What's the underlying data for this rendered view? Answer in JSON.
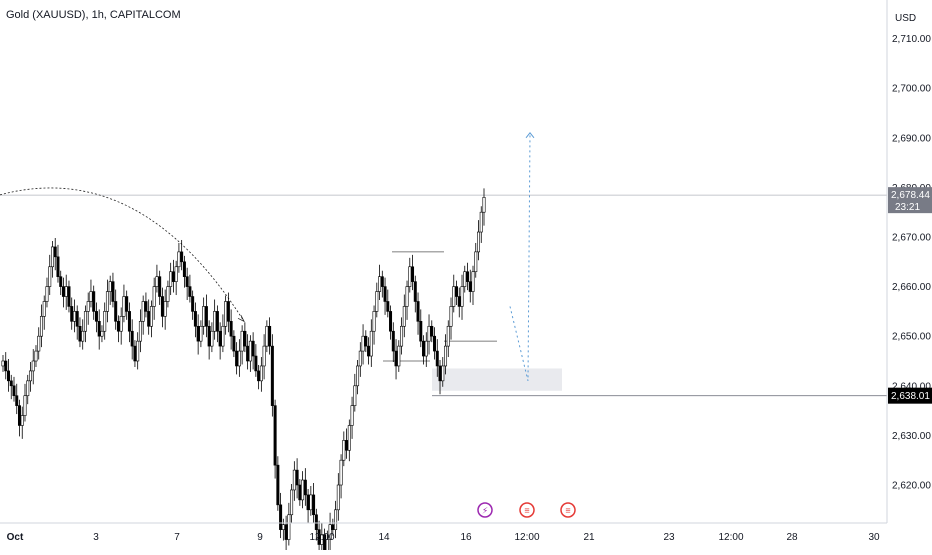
{
  "header": {
    "title": "Gold (XAUUSD), 1h, CAPITALCOM",
    "currency": "USD"
  },
  "colors": {
    "candle": "#000000",
    "axis_text": "#131722",
    "grid_line": "#b2b5be",
    "price_label_current": "#787b86",
    "price_label_marked": "#000000",
    "zone_fill": "#e9eaee",
    "projection": "#5b9bd5",
    "event_icon_purple": "#9c27b0",
    "event_icon_red": "#e53935"
  },
  "chart_data": {
    "type": "candlestick",
    "title": "Gold (XAUUSD), 1h, CAPITALCOM",
    "y_unit": "USD",
    "ylim": [
      2612,
      2720
    ],
    "y_ticks": [
      2620,
      2630,
      2640,
      2650,
      2660,
      2670,
      2680,
      2690,
      2700,
      2710
    ],
    "y_tick_labels": [
      "2,620.00",
      "2,630.00",
      "2,640.00",
      "2,650.00",
      "2,660.00",
      "2,670.00",
      "2,680.00",
      "2,690.00",
      "2,700.00",
      "2,710.00"
    ],
    "x_tick_labels": [
      "Oct",
      "3",
      "7",
      "9",
      "12:00",
      "14",
      "16",
      "12:00",
      "21",
      "23",
      "12:00",
      "28",
      "30"
    ],
    "current_price": {
      "value": 2678.44,
      "label": "2,678.44",
      "countdown": "23:21"
    },
    "marked_level": {
      "value": 2638.01,
      "label": "2,638.01"
    },
    "grid": false,
    "annotations": {
      "arc": {
        "start_price": 2678.5,
        "end_price": 2653
      },
      "lower_box": {
        "top": 2649,
        "bottom": 2643
      },
      "upper_box": {
        "top": 2667,
        "bottom": 2645
      },
      "demand_zone": {
        "top": 2643.5,
        "bottom": 2639
      },
      "projection_path": [
        2656,
        2641,
        2691
      ]
    },
    "candles_close": [
      2645,
      2643,
      2641,
      2640,
      2638,
      2636,
      2632,
      2634,
      2638,
      2641,
      2643,
      2645,
      2647,
      2650,
      2654,
      2657,
      2660,
      2664,
      2668,
      2666,
      2662,
      2660,
      2658,
      2660,
      2656,
      2653,
      2655,
      2652,
      2649,
      2651,
      2655,
      2657,
      2659,
      2655,
      2653,
      2650,
      2651,
      2655,
      2659,
      2661,
      2657,
      2653,
      2651,
      2654,
      2658,
      2655,
      2651,
      2648,
      2645,
      2649,
      2653,
      2657,
      2655,
      2652,
      2656,
      2660,
      2662,
      2658,
      2654,
      2657,
      2660,
      2663,
      2661,
      2664,
      2667,
      2665,
      2662,
      2660,
      2658,
      2655,
      2652,
      2649,
      2652,
      2656,
      2652,
      2648,
      2651,
      2655,
      2651,
      2648,
      2652,
      2657,
      2653,
      2650,
      2647,
      2644,
      2647,
      2651,
      2648,
      2645,
      2649,
      2646,
      2643,
      2641,
      2644,
      2648,
      2652,
      2648,
      2636,
      2624,
      2616,
      2611,
      2612,
      2609,
      2614,
      2619,
      2623,
      2620,
      2617,
      2621,
      2618,
      2615,
      2618,
      2614,
      2611,
      2608,
      2610,
      2606,
      2609,
      2612,
      2611,
      2615,
      2620,
      2625,
      2629,
      2627,
      2632,
      2636,
      2640,
      2644,
      2647,
      2650,
      2648,
      2646,
      2651,
      2655,
      2659,
      2662,
      2660,
      2657,
      2655,
      2651,
      2647,
      2644,
      2648,
      2652,
      2656,
      2660,
      2664,
      2661,
      2657,
      2653,
      2649,
      2646,
      2649,
      2652,
      2650,
      2647,
      2644,
      2641,
      2644,
      2648,
      2652,
      2656,
      2660,
      2658,
      2656,
      2660,
      2663,
      2661,
      2659,
      2663,
      2667,
      2671,
      2675,
      2678
    ]
  }
}
